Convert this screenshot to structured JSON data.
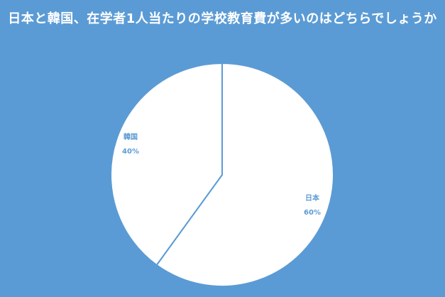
{
  "chart_data": {
    "type": "pie",
    "title": "日本と韓国、在学者1人当たりの学校教育費が多いのはどちらでしょうか",
    "categories": [
      "日本",
      "韓国"
    ],
    "values": [
      60,
      40
    ],
    "value_labels": [
      "60%",
      "40%"
    ],
    "colors": {
      "background": "#5b9bd5",
      "slice": "#ffffff",
      "border": "#5b9bd5",
      "label": "#5b9bd5"
    },
    "legend": "none"
  }
}
